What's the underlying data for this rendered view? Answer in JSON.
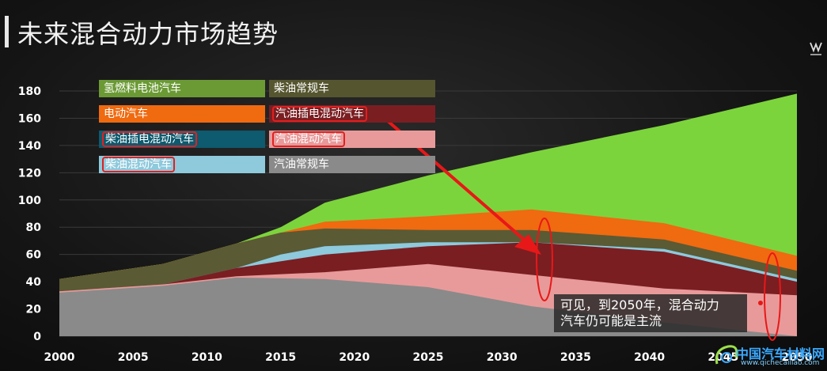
{
  "title": "未来混合动力市场趋势",
  "callout": {
    "line1": "可见，到2050年，混合动力",
    "line2": "汽车仍可能是主流"
  },
  "watermark": {
    "text": "中国汽车材料网",
    "url": "www.qichecailiao.com"
  },
  "chart_data": {
    "type": "area",
    "stacked": true,
    "x_ticks": [
      2000,
      2005,
      2010,
      2015,
      2020,
      2025,
      2030,
      2035,
      2040,
      2045,
      2050
    ],
    "xlim": [
      2000,
      2050
    ],
    "ylim": [
      0,
      180
    ],
    "y_ticks": [
      0,
      20,
      40,
      60,
      80,
      100,
      120,
      140,
      160,
      180
    ],
    "legend_position": "top-left",
    "series": [
      {
        "name": "汽油常规车",
        "color": "#8a8a8a",
        "x": [
          2000,
          2007,
          2012,
          2018,
          2025,
          2032,
          2041,
          2050
        ],
        "y": [
          32,
          37,
          43,
          42,
          36,
          22,
          10,
          0
        ]
      },
      {
        "name": "汽油混动汽车",
        "color": "#e89a9a",
        "x": [
          2000,
          2007,
          2012,
          2018,
          2025,
          2032,
          2041,
          2050
        ],
        "y": [
          33,
          38,
          44,
          47,
          53,
          45,
          35,
          30
        ]
      },
      {
        "name": "汽油插电混动汽车",
        "color": "#7a1e22",
        "x": [
          2000,
          2007,
          2012,
          2018,
          2025,
          2032,
          2041,
          2050
        ],
        "y": [
          33,
          38,
          50,
          60,
          66,
          69,
          62,
          40
        ]
      },
      {
        "name": "柴油混动汽车",
        "color": "#8ec9dc",
        "x": [
          2000,
          2007,
          2012,
          2015,
          2018,
          2025,
          2032,
          2041,
          2050
        ],
        "y": [
          33,
          38,
          50,
          60,
          66,
          69,
          69,
          64,
          42
        ]
      },
      {
        "name": "柴油插电混动汽车",
        "color": "#0e5a6e",
        "x": [
          2000,
          2007,
          2012,
          2015,
          2018,
          2025,
          2032,
          2041,
          2050
        ],
        "y": [
          33,
          38,
          50,
          60,
          66,
          69,
          69,
          64,
          42
        ]
      },
      {
        "name": "柴油常规车",
        "color": "#5a5a34",
        "x": [
          2000,
          2007,
          2012,
          2015,
          2018,
          2025,
          2032,
          2041,
          2050
        ],
        "y": [
          42,
          53,
          68,
          76,
          79,
          78,
          78,
          71,
          48
        ]
      },
      {
        "name": "电动汽车",
        "color": "#f06a10",
        "x": [
          2000,
          2007,
          2012,
          2015,
          2018,
          2025,
          2032,
          2041,
          2050
        ],
        "y": [
          42,
          53,
          68,
          76,
          84,
          88,
          93,
          83,
          59
        ]
      },
      {
        "name": "氢燃料电池汽车",
        "color": "#7cd43c",
        "x": [
          2000,
          2007,
          2012,
          2015,
          2018,
          2025,
          2032,
          2041,
          2050
        ],
        "y": [
          42,
          53,
          68,
          76,
          90,
          100,
          108,
          113,
          103
        ]
      },
      {
        "name": "氢燃料电池汽车",
        "color": "#7cd43c",
        "x": [
          2000,
          2007,
          2012,
          2015,
          2018,
          2025,
          2032,
          2041,
          2050
        ],
        "y": [
          42,
          53,
          68,
          80,
          98,
          118,
          135,
          155,
          178
        ]
      }
    ],
    "legend": [
      {
        "label": "氢燃料电池汽车",
        "color": "#6b9a35",
        "highlight": false
      },
      {
        "label": "柴油常规车",
        "color": "#55552f",
        "highlight": false
      },
      {
        "label": "电动汽车",
        "color": "#f06a10",
        "highlight": false
      },
      {
        "label": "汽油插电混动汽车",
        "color": "#7a1e22",
        "highlight": true
      },
      {
        "label": "柴油插电混动汽车",
        "color": "#0e5a6e",
        "highlight": true
      },
      {
        "label": "汽油混动汽车",
        "color": "#e89a9a",
        "highlight": true
      },
      {
        "label": "柴油混动汽车",
        "color": "#8ec9dc",
        "highlight": true
      },
      {
        "label": "汽油常规车",
        "color": "#8a8a8a",
        "highlight": false
      }
    ]
  }
}
